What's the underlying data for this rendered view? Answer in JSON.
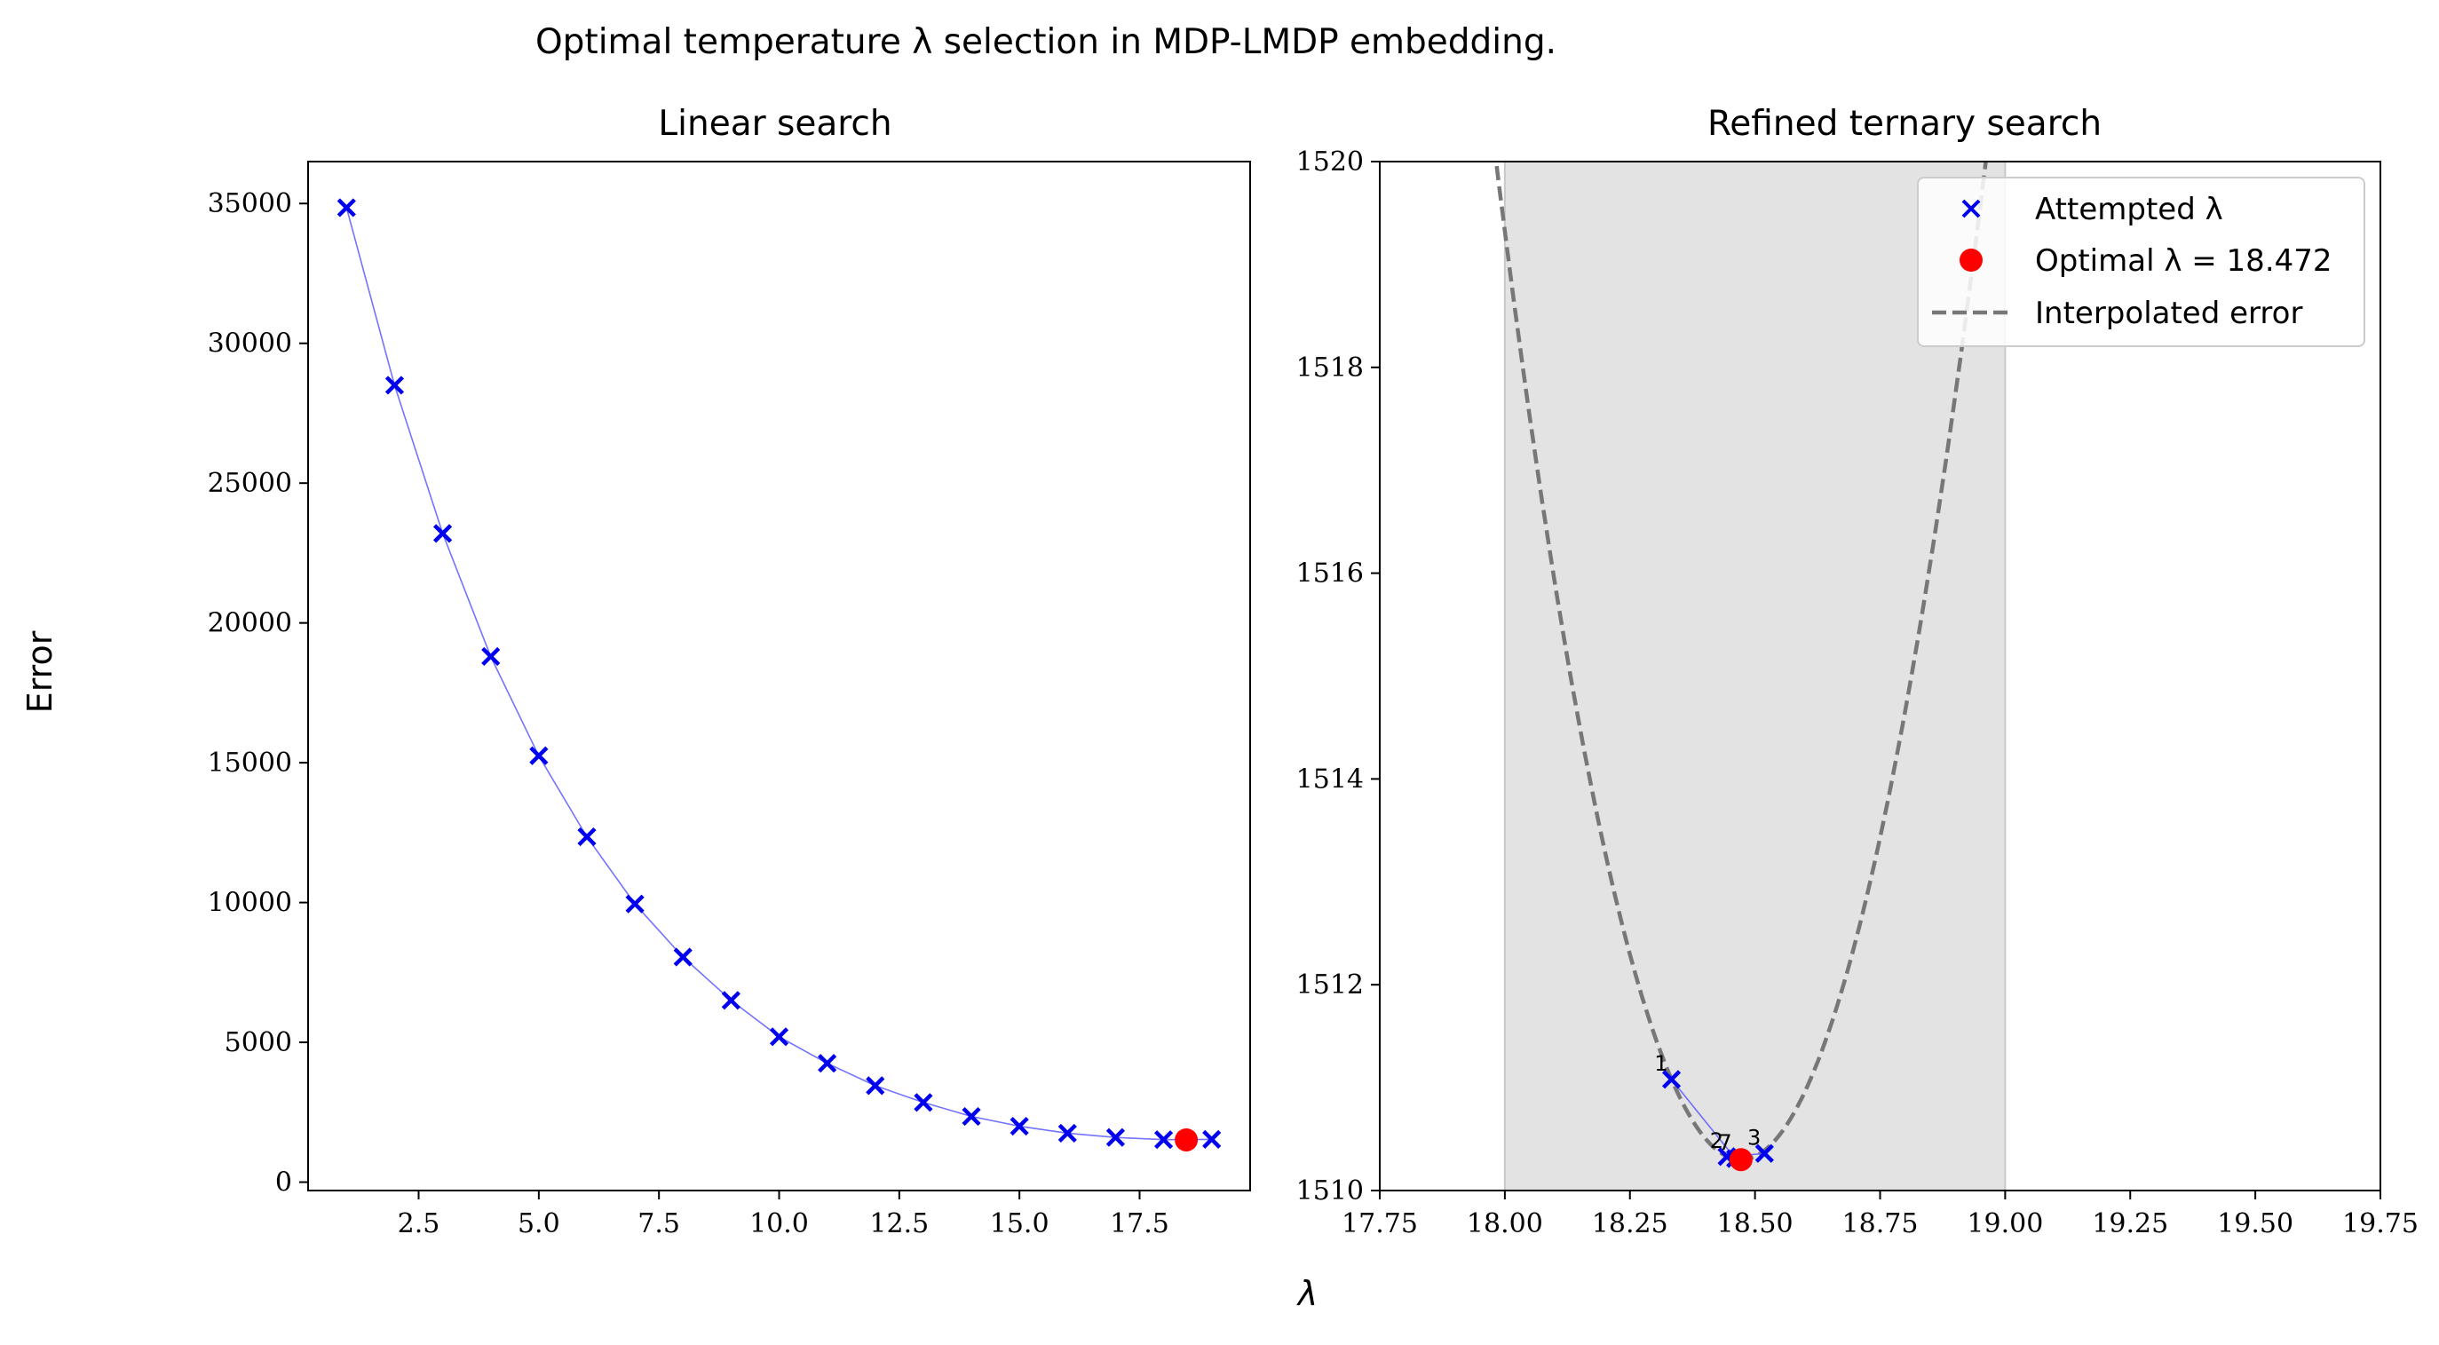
{
  "suptitle": "Optimal temperature λ selection in MDP-LMDP embedding.",
  "xlabel": "λ",
  "ylabel": "Error",
  "colors": {
    "attempted": "#0000ee",
    "optimal": "#ff0000",
    "interp": "#777777",
    "shade": "#e3e3e3",
    "line": "#5a5aff"
  },
  "chart_data": [
    {
      "type": "line",
      "title": "Linear search",
      "xlim": [
        0.2,
        19.8
      ],
      "ylim": [
        -300,
        36500
      ],
      "xticks": [
        "2.5",
        "5.0",
        "7.5",
        "10.0",
        "12.5",
        "15.0",
        "17.5"
      ],
      "xtick_values": [
        2.5,
        5.0,
        7.5,
        10.0,
        12.5,
        15.0,
        17.5
      ],
      "yticks": [
        "0",
        "5000",
        "10000",
        "15000",
        "20000",
        "25000",
        "30000",
        "35000"
      ],
      "ytick_values": [
        0,
        5000,
        10000,
        15000,
        20000,
        25000,
        30000,
        35000
      ],
      "series": [
        {
          "marker": "x",
          "x": [
            1,
            2,
            3,
            4,
            5,
            6,
            7,
            8,
            9,
            10,
            11,
            12,
            13,
            14,
            15,
            16,
            17,
            18,
            19
          ],
          "y": [
            34850,
            28500,
            23200,
            18800,
            15250,
            12350,
            9950,
            8050,
            6500,
            5200,
            4250,
            3450,
            2850,
            2350,
            2000,
            1750,
            1600,
            1520,
            1530
          ]
        },
        {
          "name": "Optimal",
          "marker": "o",
          "x": [
            18.472
          ],
          "y": [
            1510.3
          ]
        }
      ]
    },
    {
      "type": "line",
      "title": "Refined ternary search",
      "xlim": [
        17.75,
        19.75
      ],
      "ylim": [
        1510,
        1520
      ],
      "xticks": [
        "17.75",
        "18.00",
        "18.25",
        "18.50",
        "18.75",
        "19.00",
        "19.25",
        "19.50",
        "19.75"
      ],
      "xtick_values": [
        17.75,
        18.0,
        18.25,
        18.5,
        18.75,
        19.0,
        19.25,
        19.5,
        19.75
      ],
      "yticks": [
        "1510",
        "1512",
        "1514",
        "1516",
        "1518",
        "1520"
      ],
      "ytick_values": [
        1510,
        1512,
        1514,
        1516,
        1518,
        1520
      ],
      "shaded_range": [
        18.0,
        19.0
      ],
      "interpolated_error": {
        "vertex_x": 18.472,
        "vertex_y": 1510.3,
        "curvature": 40.5
      },
      "series": [
        {
          "name": "Attempted λ",
          "marker": "x",
          "x": [
            18.333,
            18.444,
            18.519,
            18.461
          ],
          "y": [
            1511.08,
            1510.33,
            1510.36,
            1510.31
          ],
          "labels": [
            "1",
            "2",
            "3",
            "7"
          ]
        },
        {
          "name": "Optimal λ = 18.472",
          "marker": "o",
          "x": [
            18.472
          ],
          "y": [
            1510.3
          ]
        },
        {
          "name": "Interpolated error",
          "style": "dashed"
        }
      ]
    }
  ]
}
